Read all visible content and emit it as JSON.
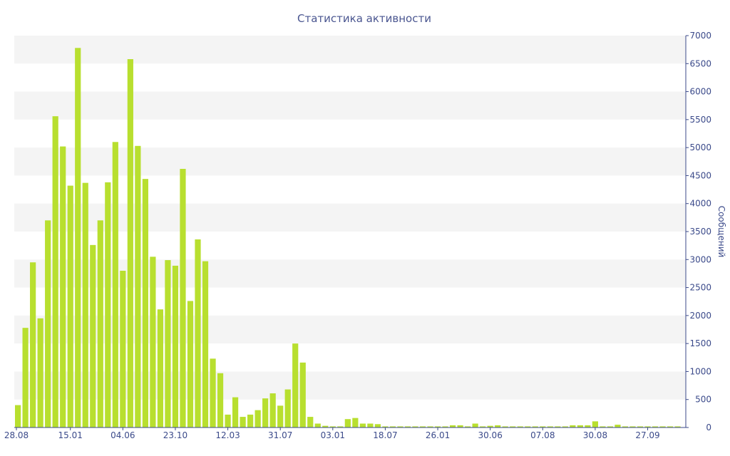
{
  "chart_data": {
    "type": "bar",
    "title": "Статистика активности",
    "xlabel": "",
    "ylabel": "Сообщений",
    "y_axis_side": "right",
    "ylim": [
      0,
      7000
    ],
    "y_ticks": [
      0,
      500,
      1000,
      1500,
      2000,
      2500,
      3000,
      3500,
      4000,
      4500,
      5000,
      5500,
      6000,
      6500,
      7000
    ],
    "x_tick_labels": [
      "28.08",
      "15.01",
      "04.06",
      "23.10",
      "12.03",
      "31.07",
      "03.01",
      "18.07",
      "26.01",
      "30.06",
      "07.08",
      "30.08",
      "27.09"
    ],
    "x_tick_label_bar_index": [
      0,
      7,
      14,
      21,
      28,
      35,
      42,
      49,
      56,
      63,
      70,
      77,
      84
    ],
    "bar_color": "#b8df2f",
    "grid_band_color": "#f4f4f4",
    "series": [
      {
        "values": [
          400,
          1780,
          2950,
          1950,
          3700,
          5560,
          5020,
          4320,
          6780,
          4370,
          3260,
          3700,
          4380,
          5100,
          2800,
          6580,
          5030,
          4440,
          3050,
          2110,
          2990,
          2890,
          4620,
          2260,
          3360,
          2970,
          1230,
          970,
          230,
          540,
          190,
          230,
          310,
          520,
          610,
          390,
          680,
          1500,
          1160,
          190,
          70,
          30,
          20,
          20,
          150,
          170,
          70,
          70,
          60,
          20,
          20,
          20,
          20,
          20,
          20,
          20,
          20,
          20,
          40,
          40,
          20,
          70,
          20,
          30,
          40,
          20,
          20,
          20,
          20,
          20,
          20,
          20,
          20,
          20,
          40,
          40,
          40,
          110,
          20,
          20,
          50,
          20,
          20,
          20,
          20,
          20,
          20,
          20,
          20
        ]
      }
    ]
  }
}
